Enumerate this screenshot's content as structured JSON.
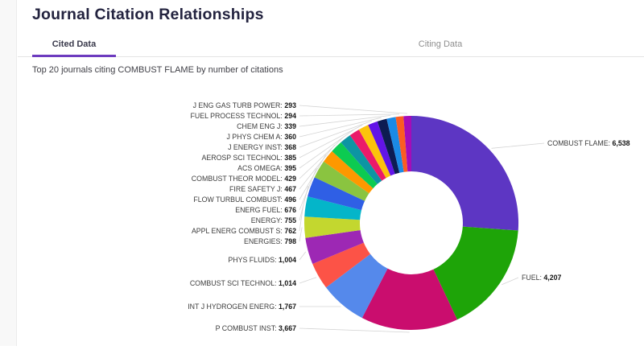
{
  "header": {
    "title": "Journal Citation Relationships"
  },
  "tabs": [
    {
      "label": "Cited Data",
      "active": true
    },
    {
      "label": "Citing Data",
      "active": false
    }
  ],
  "subtitle": "Top 20 journals citing COMBUST FLAME by number of citations",
  "accent_color": "#6d3bbf",
  "chart_data": {
    "type": "pie",
    "subtype": "donut",
    "title": "Top 20 journals citing COMBUST FLAME by number of citations",
    "unit": "citations",
    "start_angle_deg": 0,
    "direction": "clockwise",
    "total": 25014,
    "slices": [
      {
        "name": "COMBUST FLAME",
        "value": 6538,
        "display": "6,538",
        "color": "#5d36c3"
      },
      {
        "name": "FUEL",
        "value": 4207,
        "display": "4,207",
        "color": "#1ea408"
      },
      {
        "name": "P COMBUST INST",
        "value": 3667,
        "display": "3,667",
        "color": "#ca0d6e"
      },
      {
        "name": "INT J HYDROGEN ENERG",
        "value": 1767,
        "display": "1,767",
        "color": "#5589eb"
      },
      {
        "name": "COMBUST SCI TECHNOL",
        "value": 1014,
        "display": "1,014",
        "color": "#fc5347"
      },
      {
        "name": "PHYS FLUIDS",
        "value": 1004,
        "display": "1,004",
        "color": "#9d28b4"
      },
      {
        "name": "ENERGIES",
        "value": 798,
        "display": "798",
        "color": "#c3d72f"
      },
      {
        "name": "APPL ENERG COMBUST S",
        "value": 762,
        "display": "762",
        "color": "#04b5c9"
      },
      {
        "name": "ENERGY",
        "value": 755,
        "display": "755",
        "color": "#2f5fe5"
      },
      {
        "name": "ENERG FUEL",
        "value": 676,
        "display": "676",
        "color": "#8ac440"
      },
      {
        "name": "FLOW TURBUL COMBUST",
        "value": 496,
        "display": "496",
        "color": "#fe9800"
      },
      {
        "name": "FIRE SAFETY J",
        "value": 467,
        "display": "467",
        "color": "#0ccb51"
      },
      {
        "name": "COMBUST THEOR MODEL",
        "value": 429,
        "display": "429",
        "color": "#0d95a3"
      },
      {
        "name": "ACS OMEGA",
        "value": 395,
        "display": "395",
        "color": "#eb1a6a"
      },
      {
        "name": "AEROSP SCI TECHNOL",
        "value": 385,
        "display": "385",
        "color": "#fcc30b"
      },
      {
        "name": "J ENERGY INST",
        "value": 368,
        "display": "368",
        "color": "#6214e8"
      },
      {
        "name": "J PHYS CHEM A",
        "value": 360,
        "display": "360",
        "color": "#0d1c52"
      },
      {
        "name": "CHEM ENG J",
        "value": 339,
        "display": "339",
        "color": "#1b8ae5"
      },
      {
        "name": "FUEL PROCESS TECHNOL",
        "value": 294,
        "display": "294",
        "color": "#fb5c22"
      },
      {
        "name": "J ENG GAS TURB POWER",
        "value": 293,
        "display": "293",
        "color": "#a50cb8"
      }
    ]
  }
}
